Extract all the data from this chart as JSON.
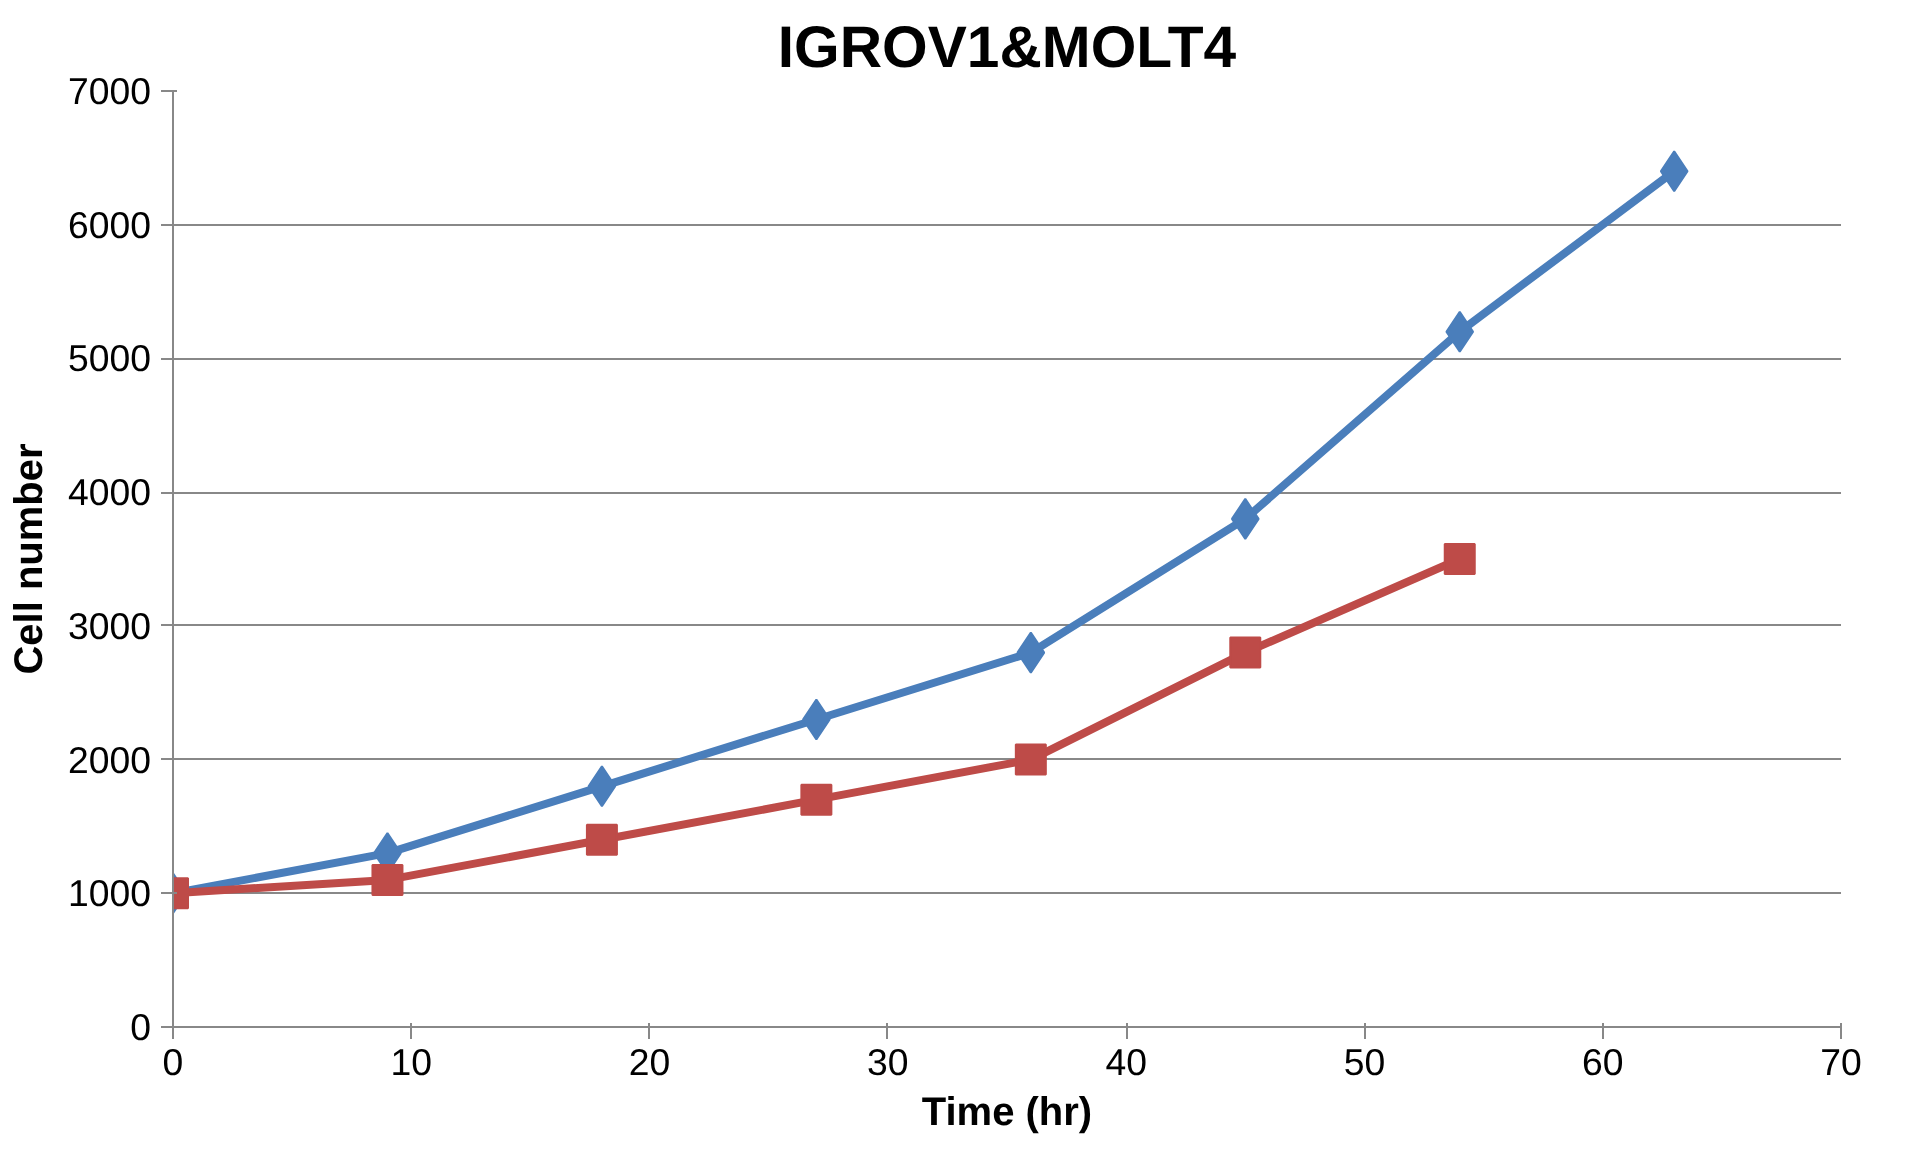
{
  "chart_data": {
    "type": "line",
    "title": "IGROV1&MOLT4",
    "xlabel": "Time (hr)",
    "ylabel": "Cell number",
    "xlim": [
      0,
      70
    ],
    "xticks": [
      0,
      10,
      20,
      30,
      40,
      50,
      60,
      70
    ],
    "ylim": [
      0,
      7000
    ],
    "yticks": [
      0,
      1000,
      2000,
      3000,
      4000,
      5000,
      6000,
      7000
    ],
    "grid": "y",
    "series": [
      {
        "color": "#4a7ebb",
        "marker": "diamond",
        "x": [
          0,
          9,
          18,
          27,
          36,
          45,
          54,
          63
        ],
        "values": [
          1000,
          1300,
          1800,
          2300,
          2800,
          3800,
          5200,
          6400
        ]
      },
      {
        "color": "#be4b48",
        "marker": "square",
        "x": [
          0,
          9,
          18,
          27,
          36,
          45,
          54
        ],
        "values": [
          1000,
          1100,
          1400,
          1700,
          2000,
          2800,
          3500
        ]
      }
    ]
  }
}
